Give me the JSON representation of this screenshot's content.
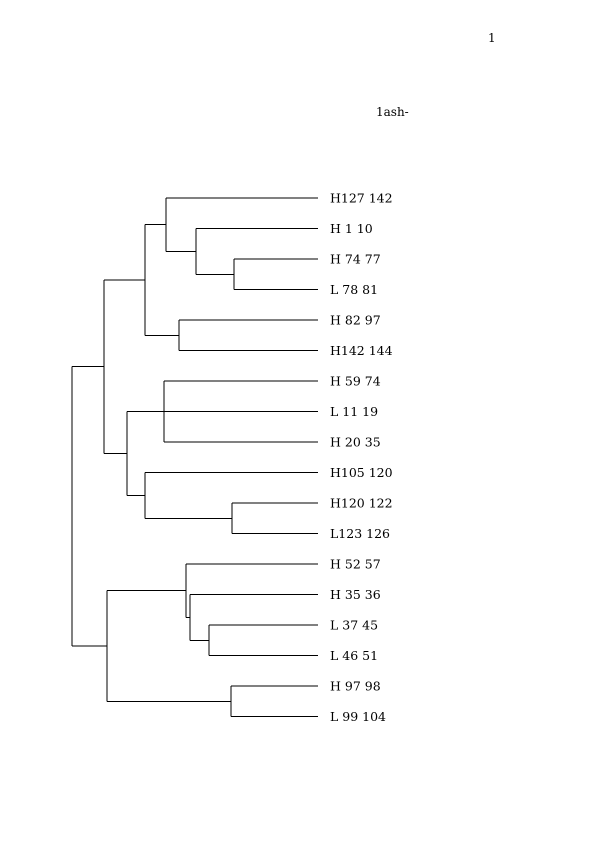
{
  "page": {
    "page_number": "1",
    "title": "1ash-"
  },
  "tree": {
    "type": "dendrogram",
    "orientation": "root-left",
    "leaves": [
      "H127 142",
      "H 1 10",
      "H 74 77",
      "L 78 81",
      "H 82 97",
      "H142 144",
      "H 59 74",
      "L 11 19",
      "H 20 35",
      "H105 120",
      "H120 122",
      "L123 126",
      "H 52 57",
      "H 35 36",
      "L 37 45",
      "L 46 51",
      "H 97 98",
      "L 99 104"
    ],
    "structure": [
      [
        [
          [
            "H127 142",
            [
              "H 1 10",
              [
                "H 74 77",
                "L 78 81"
              ]
            ]
          ],
          [
            "H 82 97",
            "H142 144"
          ]
        ],
        [
          [
            "H 59 74",
            "L 11 19",
            "H 20 35"
          ],
          [
            "H105 120",
            [
              "H120 122",
              "L123 126"
            ]
          ]
        ]
      ],
      [
        [
          "H 52 57",
          [
            "H 35 36",
            [
              "L 37 45",
              "L 46 51"
            ]
          ]
        ],
        [
          "H 97 98",
          "L 99 104"
        ]
      ]
    ]
  }
}
